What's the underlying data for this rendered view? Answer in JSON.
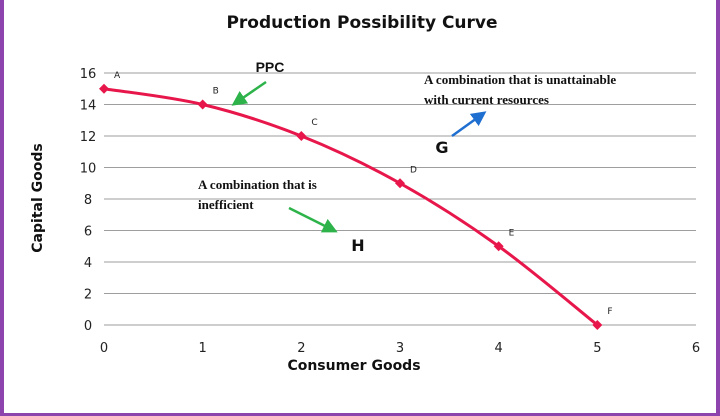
{
  "chart_data": {
    "type": "line",
    "title": "Production Possibility Curve",
    "xlabel": "Consumer Goods",
    "ylabel": "Capital Goods",
    "xlim": [
      0,
      6
    ],
    "ylim": [
      0,
      16
    ],
    "x_ticks": [
      "0",
      "1",
      "2",
      "3",
      "4",
      "5",
      "6"
    ],
    "y_ticks": [
      "0",
      "2",
      "4",
      "6",
      "8",
      "10",
      "12",
      "14",
      "16"
    ],
    "grid": "horizontal",
    "series": [
      {
        "name": "PPC",
        "color": "#e8174b",
        "points": [
          {
            "label": "A",
            "x": 0,
            "y": 15
          },
          {
            "label": "B",
            "x": 1,
            "y": 14
          },
          {
            "label": "C",
            "x": 2,
            "y": 12
          },
          {
            "label": "D",
            "x": 3,
            "y": 9
          },
          {
            "label": "E",
            "x": 4,
            "y": 5
          },
          {
            "label": "F",
            "x": 5,
            "y": 0
          }
        ]
      }
    ],
    "annotations": {
      "ppc_label": "PPC",
      "unattainable_line1": "A combination that is unattainable",
      "unattainable_line2": "with current resources",
      "g_label": "G",
      "inefficient_line1": "A combination that is",
      "inefficient_line2": "inefficient",
      "h_label": "H"
    },
    "colors": {
      "curve": "#e8174b",
      "arrow_ppc": "#2db34a",
      "arrow_h": "#2db34a",
      "arrow_g": "#1f6fd1",
      "grid": "#9e9e9e",
      "frame": "#8e44ad"
    }
  }
}
